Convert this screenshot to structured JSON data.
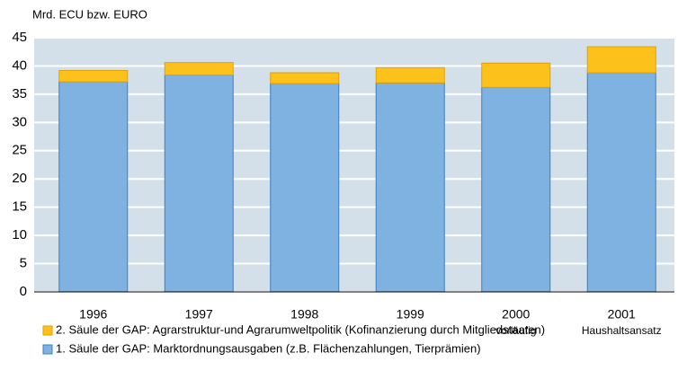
{
  "chart_data": {
    "type": "stacked_bar",
    "y_axis_label": "Mrd. ECU bzw. EURO",
    "categories": [
      "1996",
      "1997",
      "1998",
      "1999",
      "2000",
      "2001"
    ],
    "category_notes": [
      null,
      null,
      null,
      null,
      "vorläufig",
      "Haushaltsansatz"
    ],
    "series": [
      {
        "name": "1. Säule der GAP: Marktordnungsausgaben (z.B. Flächenzahlungen, Tierprämien)",
        "color": "#80b2e1",
        "values": [
          37.2,
          38.4,
          36.9,
          37.0,
          36.2,
          38.8
        ]
      },
      {
        "name": "2. Säule der GAP: Agrarstruktur-und Agrarumweltpolitik (Kofinanzierung durch Mitgliedstaaten)",
        "color": "#fdc11c",
        "values": [
          2.0,
          2.2,
          1.9,
          2.7,
          4.3,
          4.6
        ]
      }
    ],
    "ylim": [
      0,
      45
    ],
    "yticks": [
      0,
      5,
      10,
      15,
      20,
      25,
      30,
      35,
      40,
      45
    ],
    "grid": true
  }
}
